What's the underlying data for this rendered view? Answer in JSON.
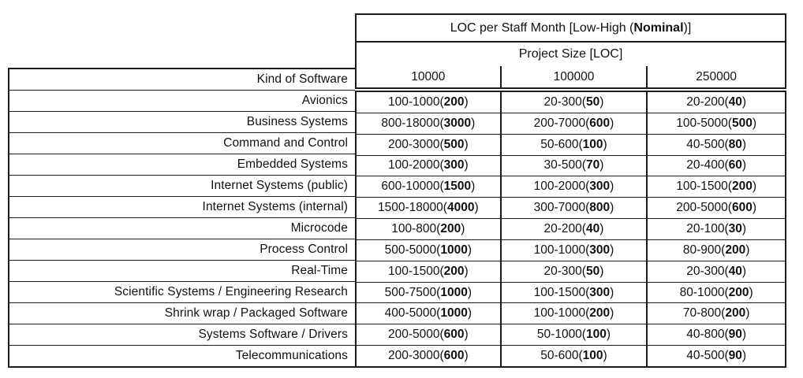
{
  "table": {
    "title": {
      "prefix": "LOC per Staff Month [Low-High (",
      "nominal": "Nominal",
      "suffix": ")]"
    },
    "project_size_header": "Project Size [LOC]",
    "kind_header": "Kind of Software",
    "size_columns": [
      "10000",
      "100000",
      "250000"
    ],
    "rows": [
      {
        "kind": "Avionics",
        "values": [
          {
            "range": "100-1000",
            "nominal": "200"
          },
          {
            "range": "20-300",
            "nominal": "50"
          },
          {
            "range": "20-200",
            "nominal": "40"
          }
        ]
      },
      {
        "kind": "Business Systems",
        "values": [
          {
            "range": "800-18000",
            "nominal": "3000"
          },
          {
            "range": "200-7000",
            "nominal": "600"
          },
          {
            "range": "100-5000",
            "nominal": "500"
          }
        ]
      },
      {
        "kind": "Command and Control",
        "values": [
          {
            "range": "200-3000",
            "nominal": "500"
          },
          {
            "range": "50-600",
            "nominal": "100"
          },
          {
            "range": "40-500",
            "nominal": "80"
          }
        ]
      },
      {
        "kind": "Embedded Systems",
        "values": [
          {
            "range": "100-2000",
            "nominal": "300"
          },
          {
            "range": "30-500",
            "nominal": "70"
          },
          {
            "range": "20-400",
            "nominal": "60"
          }
        ]
      },
      {
        "kind": "Internet Systems (public)",
        "values": [
          {
            "range": "600-10000",
            "nominal": "1500"
          },
          {
            "range": "100-2000",
            "nominal": "300"
          },
          {
            "range": "100-1500",
            "nominal": "200"
          }
        ]
      },
      {
        "kind": "Internet Systems (internal)",
        "values": [
          {
            "range": "1500-18000",
            "nominal": "4000"
          },
          {
            "range": "300-7000",
            "nominal": "800"
          },
          {
            "range": "200-5000",
            "nominal": "600"
          }
        ]
      },
      {
        "kind": "Microcode",
        "values": [
          {
            "range": "100-800",
            "nominal": "200"
          },
          {
            "range": "20-200",
            "nominal": "40"
          },
          {
            "range": "20-100",
            "nominal": "30"
          }
        ]
      },
      {
        "kind": "Process Control",
        "values": [
          {
            "range": "500-5000",
            "nominal": "1000"
          },
          {
            "range": "100-1000",
            "nominal": "300"
          },
          {
            "range": "80-900",
            "nominal": "200"
          }
        ]
      },
      {
        "kind": "Real-Time",
        "values": [
          {
            "range": "100-1500",
            "nominal": "200"
          },
          {
            "range": "20-300",
            "nominal": "50"
          },
          {
            "range": "20-300",
            "nominal": "40"
          }
        ]
      },
      {
        "kind": "Scientific Systems / Engineering Research",
        "values": [
          {
            "range": "500-7500",
            "nominal": "1000"
          },
          {
            "range": "100-1500",
            "nominal": "300"
          },
          {
            "range": "80-1000",
            "nominal": "200"
          }
        ]
      },
      {
        "kind": "Shrink wrap / Packaged Software",
        "values": [
          {
            "range": "400-5000",
            "nominal": "1000"
          },
          {
            "range": "100-1000",
            "nominal": "200"
          },
          {
            "range": "70-800",
            "nominal": "200"
          }
        ]
      },
      {
        "kind": "Systems Software / Drivers",
        "values": [
          {
            "range": "200-5000",
            "nominal": "600"
          },
          {
            "range": "50-1000",
            "nominal": "100"
          },
          {
            "range": "40-800",
            "nominal": "90"
          }
        ]
      },
      {
        "kind": "Telecommunications",
        "values": [
          {
            "range": "200-3000",
            "nominal": "600"
          },
          {
            "range": "50-600",
            "nominal": "100"
          },
          {
            "range": "40-500",
            "nominal": "90"
          }
        ]
      }
    ]
  },
  "colors": {
    "border": "#1c1c1c",
    "text": "#111111",
    "background": "#ffffff"
  }
}
